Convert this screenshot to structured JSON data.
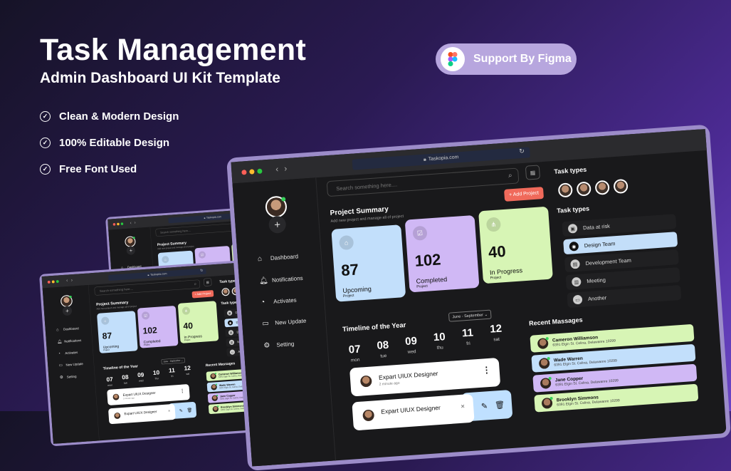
{
  "hero": {
    "title": "Task Management",
    "subtitle": "Admin Dashboard UI Kit Template",
    "features": [
      "Clean & Modern Design",
      "100% Editable Design",
      "Free Font Used"
    ],
    "figma_badge": "Support By Figma",
    "background_colors": [
      "#161327",
      "#4b2a92",
      "#6a45c6"
    ]
  },
  "browser": {
    "url": "Taskopia.com",
    "back": "‹",
    "forward": "›"
  },
  "sidebar": {
    "add": "+",
    "items": [
      {
        "label": "Dashboard",
        "icon": "home-icon",
        "glyph": "⌂"
      },
      {
        "label": "Notifications",
        "icon": "bell-icon",
        "glyph": "🔔︎"
      },
      {
        "label": "Activates",
        "icon": "pie-chart-icon",
        "glyph": "◔"
      },
      {
        "label": "New Update",
        "icon": "monitor-icon",
        "glyph": "▭"
      },
      {
        "label": "Setting",
        "icon": "gear-icon",
        "glyph": "⚙"
      }
    ]
  },
  "main": {
    "search_placeholder": "Search something here....",
    "add_project": "+ Add Project",
    "summary_title": "Project Summary",
    "summary_subtitle": "Add new project and manage all of project",
    "cards": [
      {
        "value": "87",
        "label": "Upcoming",
        "sub": "Project",
        "color": "#c2dffb",
        "glyph": "⌂"
      },
      {
        "value": "102",
        "label": "Completed",
        "sub": "Project",
        "color": "#d0b8f5",
        "glyph": "☑"
      },
      {
        "value": "40",
        "label": "In Progress",
        "sub": "Project",
        "color": "#d7f5b5",
        "glyph": "⋔"
      }
    ],
    "timeline_title": "Timeline of the Year",
    "timeline_range": "June - September ⌄",
    "days": [
      {
        "num": "07",
        "name": "mon"
      },
      {
        "num": "08",
        "name": "tue"
      },
      {
        "num": "09",
        "name": "wed"
      },
      {
        "num": "10",
        "name": "thu"
      },
      {
        "num": "11",
        "name": "fri"
      },
      {
        "num": "12",
        "name": "sat"
      }
    ],
    "tasks": [
      {
        "title": "Expart UIUX Designer",
        "time": "2 minute ago"
      },
      {
        "title": "Expart UIUX Designer",
        "time": ""
      }
    ]
  },
  "right_panel": {
    "task_types_heading": "Task types",
    "task_types_heading_2": "Task types",
    "task_types": [
      {
        "label": "Data at risk",
        "active": false
      },
      {
        "label": "Design Team",
        "active": true
      },
      {
        "label": "Development Team",
        "active": false
      },
      {
        "label": "Meeting",
        "active": false
      },
      {
        "label": "Another",
        "active": false
      }
    ],
    "messages_heading": "Recent Massages",
    "messages": [
      {
        "name": "Cameron Williamson",
        "address": "6391 Elgin St. Celina, Delawanre 10299",
        "color": "#d7f5b5"
      },
      {
        "name": "Wade Warren",
        "address": "6391 Elgin St. Celina, Delawanre 10299",
        "color": "#c2dffb"
      },
      {
        "name": "Jane Copper",
        "address": "6391 Elgin St. Celina, Delawanre 10299",
        "color": "#d0b8f5"
      },
      {
        "name": "Brooklyn Simmons",
        "address": "6391 Elgin St. Celina, Delawanre 10299",
        "color": "#d7f5b5"
      }
    ]
  }
}
